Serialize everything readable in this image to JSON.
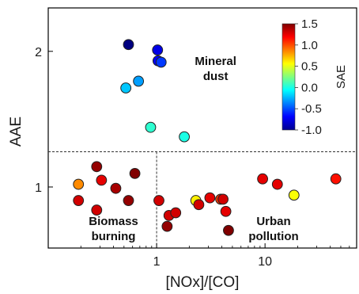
{
  "chart_data": {
    "type": "scatter",
    "xlabel": "[NOx]/[CO]",
    "ylabel": "AAE",
    "xscale": "log",
    "xlim": [
      0.1,
      70
    ],
    "ylim": [
      0.55,
      2.32
    ],
    "xticks": [
      {
        "v": 1,
        "label": "1"
      },
      {
        "v": 10,
        "label": "10"
      }
    ],
    "yticks": [
      {
        "v": 1,
        "label": "1"
      },
      {
        "v": 2,
        "label": "2"
      }
    ],
    "grid": false,
    "dividers": {
      "y": 1.26,
      "x": 1.0
    },
    "regions": [
      {
        "lines": [
          "Mineral",
          "dust"
        ],
        "x": 3.5,
        "y": 1.9
      },
      {
        "lines": [
          "Biomass",
          "burning"
        ],
        "x": 0.4,
        "y": 0.72
      },
      {
        "lines": [
          "Urban",
          "pollution"
        ],
        "x": 12,
        "y": 0.72
      }
    ],
    "colorbar": {
      "label": "SAE",
      "min": -1.0,
      "max": 1.5,
      "ticks": [
        "1.5",
        "1.0",
        "0.5",
        "0.0",
        "-0.5",
        "-1.0"
      ],
      "colormap": "jet"
    },
    "points": [
      {
        "x": 0.55,
        "y": 2.05,
        "sae": -1.0
      },
      {
        "x": 1.02,
        "y": 2.01,
        "sae": -0.75
      },
      {
        "x": 1.03,
        "y": 1.93,
        "sae": -0.7
      },
      {
        "x": 1.1,
        "y": 1.92,
        "sae": -0.55
      },
      {
        "x": 0.68,
        "y": 1.78,
        "sae": -0.3
      },
      {
        "x": 0.52,
        "y": 1.73,
        "sae": -0.2
      },
      {
        "x": 0.88,
        "y": 1.44,
        "sae": 0.05
      },
      {
        "x": 1.8,
        "y": 1.37,
        "sae": 0.0
      },
      {
        "x": 0.28,
        "y": 1.15,
        "sae": 1.45
      },
      {
        "x": 0.63,
        "y": 1.1,
        "sae": 1.5
      },
      {
        "x": 0.31,
        "y": 1.05,
        "sae": 1.25
      },
      {
        "x": 0.19,
        "y": 1.02,
        "sae": 0.85
      },
      {
        "x": 0.42,
        "y": 0.99,
        "sae": 1.4
      },
      {
        "x": 0.19,
        "y": 0.9,
        "sae": 1.3
      },
      {
        "x": 0.55,
        "y": 0.9,
        "sae": 1.45
      },
      {
        "x": 0.28,
        "y": 0.83,
        "sae": 1.3
      },
      {
        "x": 1.05,
        "y": 0.9,
        "sae": 1.3
      },
      {
        "x": 1.3,
        "y": 0.79,
        "sae": 1.3
      },
      {
        "x": 1.5,
        "y": 0.81,
        "sae": 1.3
      },
      {
        "x": 1.25,
        "y": 0.71,
        "sae": 1.45
      },
      {
        "x": 2.3,
        "y": 0.9,
        "sae": 0.6
      },
      {
        "x": 2.45,
        "y": 0.87,
        "sae": 1.3
      },
      {
        "x": 3.1,
        "y": 0.92,
        "sae": 1.25
      },
      {
        "x": 3.9,
        "y": 0.91,
        "sae": 1.05
      },
      {
        "x": 4.1,
        "y": 0.91,
        "sae": 1.3
      },
      {
        "x": 4.35,
        "y": 0.82,
        "sae": 1.25
      },
      {
        "x": 4.6,
        "y": 0.68,
        "sae": 1.5
      },
      {
        "x": 9.5,
        "y": 1.06,
        "sae": 1.25
      },
      {
        "x": 13,
        "y": 1.02,
        "sae": 1.25
      },
      {
        "x": 18.5,
        "y": 0.94,
        "sae": 0.55
      },
      {
        "x": 45,
        "y": 1.06,
        "sae": 1.15
      }
    ]
  }
}
